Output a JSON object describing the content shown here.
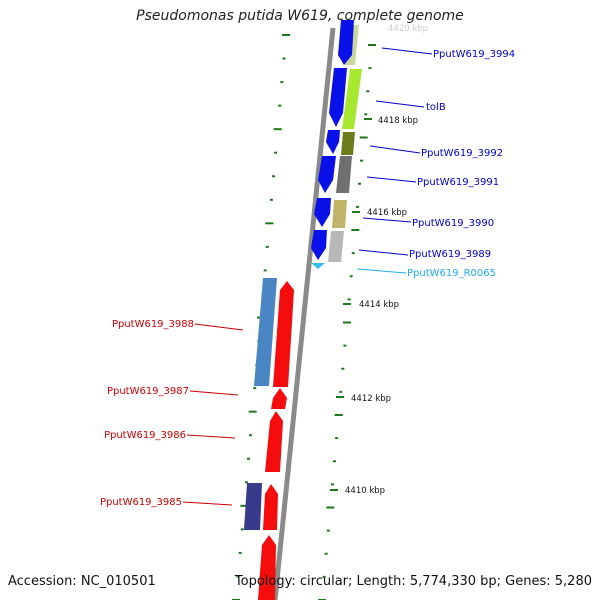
{
  "title": "Pseudomonas putida W619, complete genome",
  "accession": "Accession: NC_010501",
  "topology": "Topology: circular; Length: 5,774,330 bp; Genes: 5,280",
  "ticks": {
    "top_faded": "4420 kbp",
    "t4418": "4418 kbp",
    "t4416": "4416 kbp",
    "t4414": "4414 kbp",
    "t4412": "4412 kbp",
    "t4410": "4410 kbp"
  },
  "colors": {
    "forward_cds": "#0a10e8",
    "reverse_cds": "#f50d0d",
    "rna": "#33c0ee",
    "backbone": "#8a8a8a",
    "tick": "#1a7a1a",
    "label_forward": "#0000cc",
    "label_reverse": "#cc0000",
    "label_rna": "#22aaee",
    "cog_green": "#a6e830",
    "cog_olive": "#6b7c1a",
    "cog_grey": "#6f6f6f",
    "cog_khaki": "#c0b468",
    "cog_lightgrey": "#b8b8b8",
    "cog_steelblue": "#4a86c4",
    "cog_navy": "#3a3a8c"
  },
  "genes": {
    "g3994": "PputW619_3994",
    "tolB": "tolB",
    "g3992": "PputW619_3992",
    "g3991": "PputW619_3991",
    "g3990": "PputW619_3990",
    "g3989": "PputW619_3989",
    "r0065": "PputW619_R0065",
    "g3988": "PputW619_3988",
    "g3987": "PputW619_3987",
    "g3986": "PputW619_3986",
    "g3985": "PputW619_3985"
  }
}
